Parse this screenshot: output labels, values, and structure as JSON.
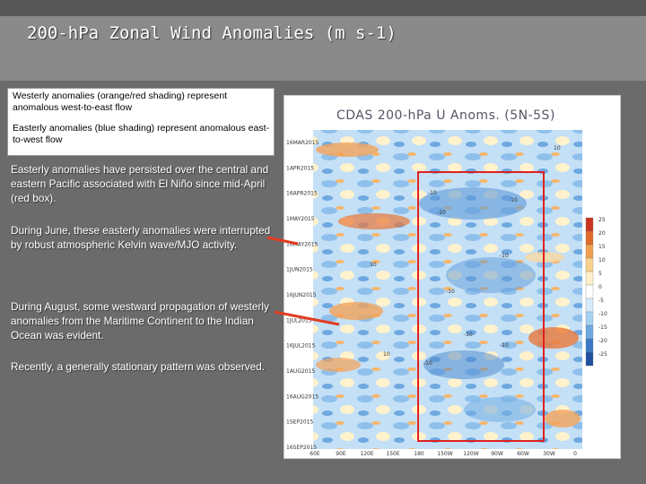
{
  "title": "200-hPa Zonal Wind Anomalies (m s-1)",
  "legend": {
    "westerly": "Westerly anomalies (orange/red shading) represent anomalous west-to-east flow",
    "easterly": "Easterly anomalies (blue shading) represent anomalous east-to-west flow"
  },
  "paragraphs": [
    "Easterly anomalies have persisted over the central and eastern Pacific associated with El Niño since mid-April (red box).",
    "During June, these easterly anomalies were interrupted by robust atmospheric Kelvin wave/MJO activity.",
    "During August, some westward propagation of westerly anomalies from the Maritime Continent to the Indian Ocean was evident.",
    "Recently, a generally stationary pattern was observed."
  ],
  "plot": {
    "title": "CDAS 200-hPa U Anoms. (5N-5S)",
    "y_ticks": [
      "16MAR2015",
      "1APR2015",
      "16APR2015",
      "1MAY2015",
      "16MAY2015",
      "1JUN2015",
      "16JUN2015",
      "1JUL2015",
      "16JUL2015",
      "1AUG2015",
      "16AUG2015",
      "1SEP2015",
      "16SEP2015"
    ],
    "x_ticks": [
      "60E",
      "90E",
      "120E",
      "150E",
      "180",
      "150W",
      "120W",
      "90W",
      "60W",
      "30W",
      "0"
    ],
    "colorbar_ticks": [
      "25",
      "20",
      "15",
      "10",
      "5",
      "0",
      "-5",
      "-10",
      "-15",
      "-20",
      "-25"
    ],
    "contour_labels": [
      "10",
      "-10",
      "-10",
      "-10",
      "-10",
      "-10",
      "-10",
      "10",
      "10",
      "-10",
      "-10"
    ],
    "colorbar_colors": [
      "#c8341e",
      "#e06a2a",
      "#f0a050",
      "#f8d28c",
      "#fff0c8",
      "#ffffff",
      "#d6ecfa",
      "#a6d2f2",
      "#6ea8e0",
      "#3c78c8",
      "#2050a0"
    ]
  }
}
